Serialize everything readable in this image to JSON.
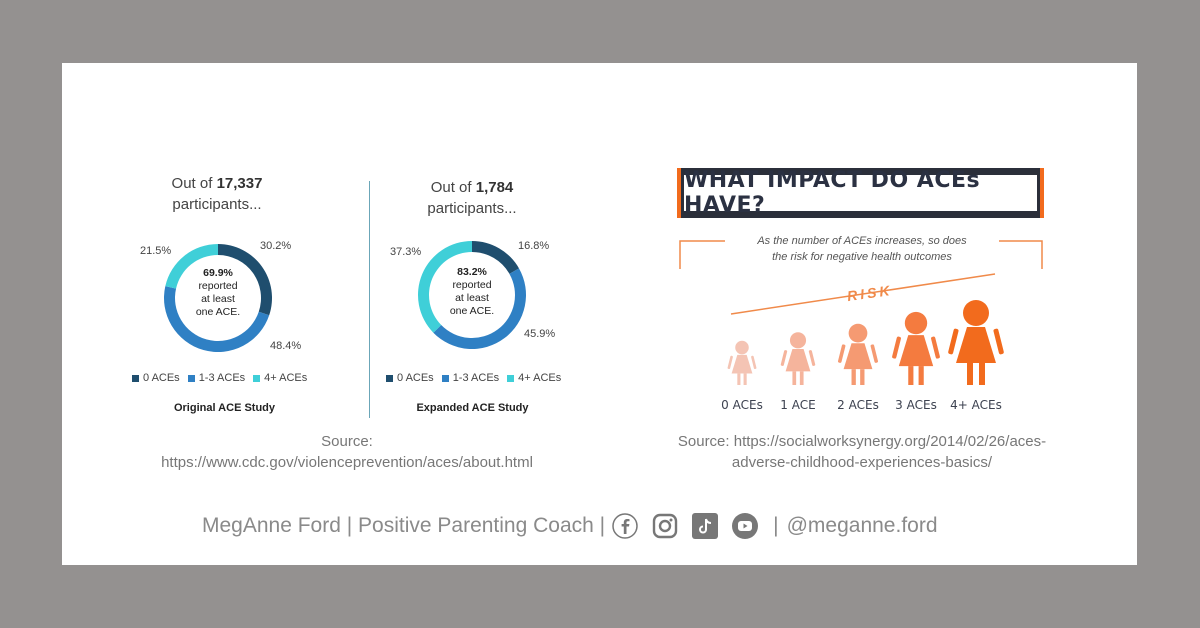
{
  "chart_data": [
    {
      "type": "pie",
      "intro_prefix": "Out of ",
      "participants": "17,337",
      "intro_suffix": "participants...",
      "center_pct": "69.9%",
      "center_line2": "reported",
      "center_line3": "at least",
      "center_line4": "one ACE.",
      "categories": [
        "0 ACEs",
        "1-3 ACEs",
        "4+ ACEs"
      ],
      "values": [
        30.2,
        48.4,
        21.5
      ],
      "value_labels": [
        "30.2%",
        "48.4%",
        "21.5%"
      ],
      "colors": [
        "#1f4e6e",
        "#2f80c4",
        "#3fcfd8"
      ],
      "title": "Original ACE Study"
    },
    {
      "type": "pie",
      "intro_prefix": "Out of ",
      "participants": "1,784",
      "intro_suffix": "participants...",
      "center_pct": "83.2%",
      "center_line2": "reported",
      "center_line3": "at least",
      "center_line4": "one ACE.",
      "categories": [
        "0 ACEs",
        "1-3 ACEs",
        "4+ ACEs"
      ],
      "values": [
        16.8,
        45.9,
        37.3
      ],
      "value_labels": [
        "16.8%",
        "45.9%",
        "37.3%"
      ],
      "colors": [
        "#1f4e6e",
        "#2f80c4",
        "#3fcfd8"
      ],
      "title": "Expanded ACE Study"
    }
  ],
  "left_source": {
    "line1": "Source:",
    "line2": "https://www.cdc.gov/violenceprevention/aces/about.html"
  },
  "impact": {
    "title": "WHAT IMPACT DO ACEs HAVE?",
    "subtitle_line1": "As the number of ACEs increases, so does",
    "subtitle_line2": "the risk for negative health outcomes",
    "risk_label": "RISK",
    "figures": [
      {
        "label": "0 ACEs",
        "color": "#f4c4b4"
      },
      {
        "label": "1 ACE",
        "color": "#f5b49c"
      },
      {
        "label": "2 ACEs",
        "color": "#f59a72"
      },
      {
        "label": "3 ACEs",
        "color": "#f47b3f"
      },
      {
        "label": "4+ ACEs",
        "color": "#f26b1d"
      }
    ],
    "source_line1": "Source: https://socialworksynergy.org/2014/02/26/aces-",
    "source_line2": "adverse-childhood-experiences-basics/"
  },
  "footer": {
    "brand": "MegAnne Ford | Positive Parenting Coach |",
    "divider": "|",
    "handle": "@meganne.ford",
    "icons": [
      "facebook-icon",
      "instagram-icon",
      "tiktok-icon",
      "youtube-icon"
    ]
  }
}
